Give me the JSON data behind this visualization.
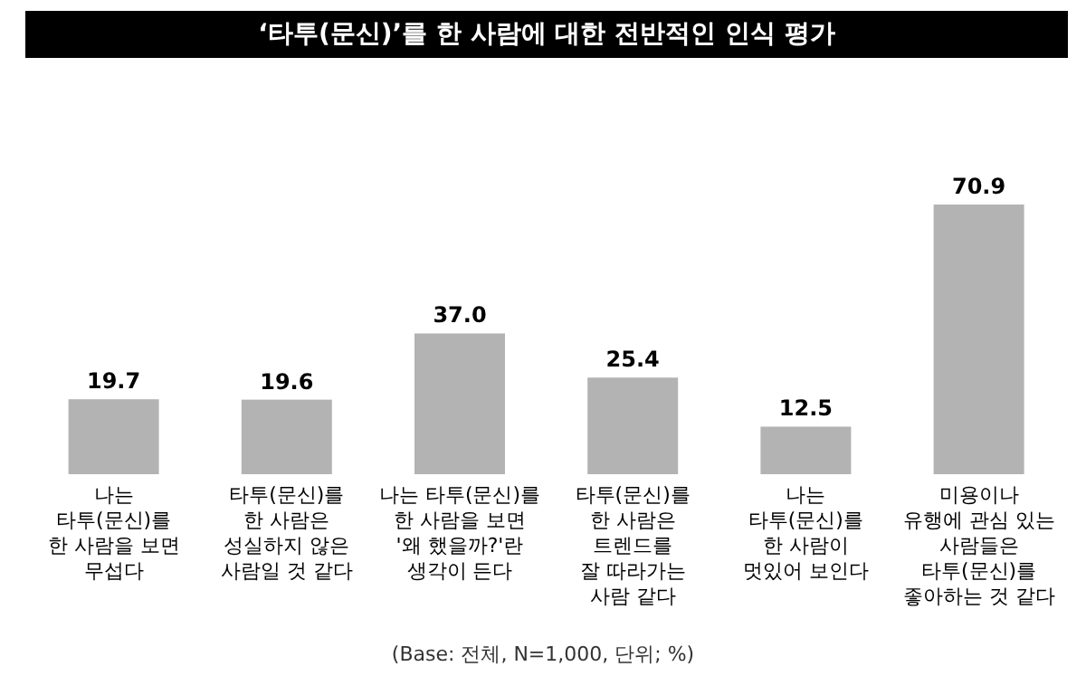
{
  "chart_data": {
    "type": "bar",
    "title": "‘타투(문신)’를 한 사람에 대한 전반적인 인식 평가",
    "categories": [
      "나는\n타투(문신)를\n한 사람을 보면\n무섭다",
      "타투(문신)를\n한 사람은\n성실하지 않은\n사람일 것 같다",
      "나는 타투(문신)를\n한 사람을 보면\n'왜 했을까?'란\n생각이 든다",
      "타투(문신)를\n한 사람은\n트렌드를\n잘 따라가는\n사람 같다",
      "나는\n타투(문신)를\n한 사람이\n멋있어 보인다",
      "미용이나\n유행에 관심 있는\n사람들은\n타투(문신)를\n좋아하는 것 같다"
    ],
    "values": [
      19.7,
      19.6,
      37.0,
      25.4,
      12.5,
      70.9
    ],
    "value_labels": [
      "19.7",
      "19.6",
      "37.0",
      "25.4",
      "12.5",
      "70.9"
    ],
    "color": "#b3b3b3",
    "annotations": [
      "(Base: 전체, N=1,000, 단위; %)"
    ]
  }
}
